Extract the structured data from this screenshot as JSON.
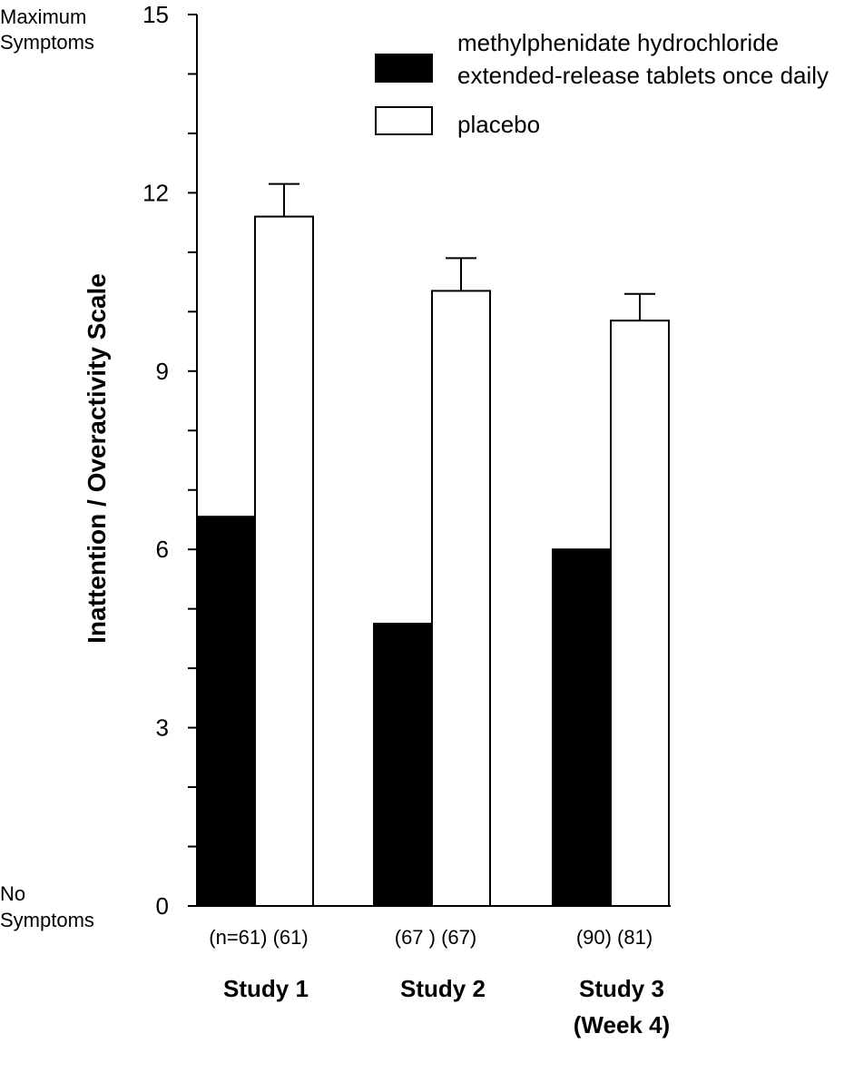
{
  "chart_data": {
    "type": "bar",
    "ylabel": "Inattention / Overactivity Scale",
    "ylim": [
      0,
      15
    ],
    "yticks_major": [
      0,
      3,
      6,
      9,
      12,
      15
    ],
    "yticks_minor_step": 1,
    "y_top_note": [
      "Maximum",
      "Symptoms"
    ],
    "y_bottom_note": [
      "No",
      "Symptoms"
    ],
    "grid": false,
    "legend_position": "top-right",
    "categories": [
      {
        "lines": [
          "Study 1"
        ]
      },
      {
        "lines": [
          "Study 2"
        ]
      },
      {
        "lines": [
          "Study 3",
          "(Week 4)"
        ]
      }
    ],
    "sample_labels": [
      "(n=61) (61)",
      "(67 ) (67)",
      "(90)  (81)"
    ],
    "series": [
      {
        "name": [
          "methylphenidate hydrochloride",
          "extended-release tablets once daily"
        ],
        "fill": "#000000",
        "values": [
          6.55,
          4.75,
          6.0
        ],
        "errors": [
          null,
          null,
          null
        ]
      },
      {
        "name": [
          "placebo"
        ],
        "fill": "#ffffff",
        "values": [
          11.6,
          10.35,
          9.85
        ],
        "errors": [
          0.55,
          0.55,
          0.45
        ]
      }
    ]
  }
}
